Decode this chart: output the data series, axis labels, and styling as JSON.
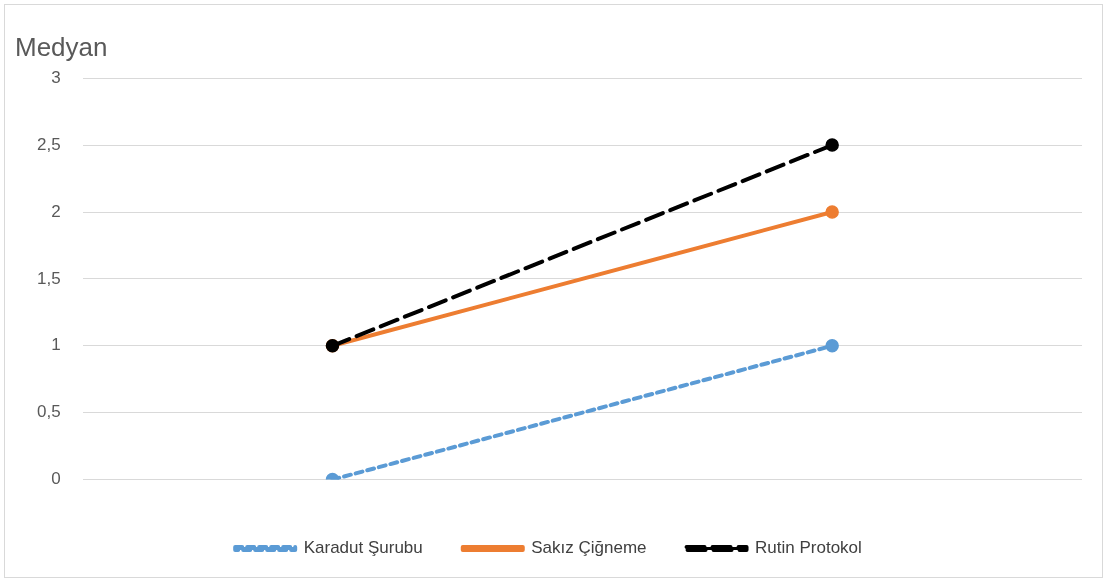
{
  "chart_data": {
    "type": "line",
    "title": "Medyan",
    "categories": [
      null,
      null
    ],
    "series": [
      {
        "name": "Karadut Şurubu",
        "color": "#5b9bd5",
        "values": [
          0,
          1
        ],
        "line_style": "dotted"
      },
      {
        "name": "Sakız Çiğneme",
        "color": "#ed7d31",
        "values": [
          1,
          2
        ],
        "line_style": "solid"
      },
      {
        "name": "Rutin Protokol",
        "color": "#000000",
        "values": [
          1,
          2.5
        ],
        "line_style": "dashed"
      }
    ],
    "ylim": [
      0,
      3
    ],
    "yticks": [
      0,
      {
        "value": 0.5,
        "label": "0,5"
      },
      1,
      {
        "value": 1.5,
        "label": "1,5"
      },
      2,
      {
        "value": 2.5,
        "label": "2,5"
      },
      3
    ],
    "grid": "y",
    "legend": "bottom",
    "marker": "circle"
  }
}
